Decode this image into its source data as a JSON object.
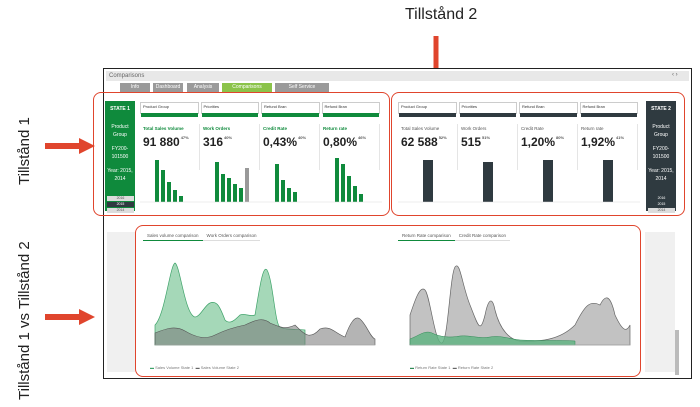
{
  "labels": {
    "state2_top": "Tillstånd 2",
    "state1_side": "Tillstånd 1",
    "compare_side": "Tillstånd 1 vs Tillstånd 2"
  },
  "app": {
    "title": "Comparisons",
    "nav_tabs": [
      {
        "label": "Info",
        "active": false
      },
      {
        "label": "Dashboard",
        "active": false
      },
      {
        "label": "Analysis",
        "active": false
      },
      {
        "label": "Comparisons",
        "active": true
      },
      {
        "label": "Self Service",
        "active": false
      }
    ]
  },
  "state1": {
    "header": "STATE 1",
    "info_lines": [
      "Product Group",
      "FY200-101500",
      "Year: 2015, 2014"
    ],
    "years": [
      "2016",
      "2015",
      "2014"
    ],
    "filters": [
      "Product Group",
      "Priorities",
      "Refund Bran",
      "Refund Bran"
    ],
    "kpis": [
      {
        "title": "Total Sales Volume",
        "value": "91 880",
        "sub": "47%"
      },
      {
        "title": "Work Orders",
        "value": "316",
        "sub": "40%"
      },
      {
        "title": "Credit Rate",
        "value": "0,43%",
        "sub": "40%"
      },
      {
        "title": "Return rate",
        "value": "0,80%",
        "sub": "46%"
      }
    ]
  },
  "state2": {
    "header": "STATE 2",
    "info_lines": [
      "Product Group",
      "FY200-101500",
      "Year: 2015, 2014"
    ],
    "years": [
      "2016",
      "2015",
      "2014"
    ],
    "filters": [
      "Product Group",
      "Priorities",
      "Refund Bran",
      "Refund Bran"
    ],
    "kpis": [
      {
        "title": "Total Sales Volume",
        "value": "62 588",
        "sub": "52%"
      },
      {
        "title": "Work Orders",
        "value": "515",
        "sub": "51%"
      },
      {
        "title": "Credit Rate",
        "value": "1,20%",
        "sub": "80%"
      },
      {
        "title": "Return rate",
        "value": "1,92%",
        "sub": "41%"
      }
    ]
  },
  "compare": {
    "left_tabs": [
      "Sales volume comparison",
      "Work Orders comparison"
    ],
    "right_tabs": [
      "Return Rate comparison",
      "Credit Rate comparison"
    ],
    "left_legend": [
      "Sales Volume State 1",
      "Sales Volume State 2"
    ],
    "right_legend": [
      "Return Rate State 1",
      "Return Rate State 2"
    ]
  },
  "colors": {
    "green": "#0f8a3c",
    "dark": "#2f3a40",
    "red": "#e0452d",
    "light_green": "#8bc34a"
  }
}
